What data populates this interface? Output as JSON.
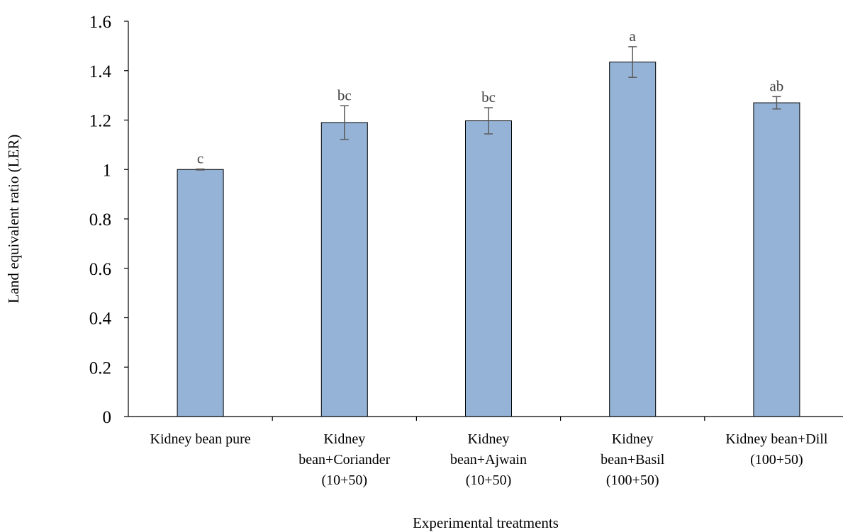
{
  "chart_data": {
    "type": "bar",
    "categories": [
      [
        "Kidney bean pure"
      ],
      [
        "Kidney",
        "bean+Coriander",
        "(10+50)"
      ],
      [
        "Kidney",
        "bean+Ajwain",
        "(10+50)"
      ],
      [
        "Kidney",
        "bean+Basil",
        "(100+50)"
      ],
      [
        "Kidney bean+Dill",
        "(100+50)"
      ]
    ],
    "values": [
      1.0,
      1.19,
      1.197,
      1.435,
      1.27
    ],
    "error": [
      0.002,
      0.068,
      0.053,
      0.062,
      0.025
    ],
    "significance_letters": [
      "c",
      "bc",
      "bc",
      "a",
      "ab"
    ],
    "xlabel": "Experimental treatments",
    "ylabel": "Land equivalent ratio (LER)",
    "ylim": [
      0,
      1.6
    ],
    "yticks": [
      "0",
      "0.2",
      "0.4",
      "0.6",
      "0.8",
      "1",
      "1.2",
      "1.4",
      "1.6"
    ],
    "grid": false,
    "colors": {
      "bar_fill": "#95b3d7",
      "bar_stroke": "#000000",
      "error_bar": "#595959",
      "axis": "#000000"
    }
  }
}
